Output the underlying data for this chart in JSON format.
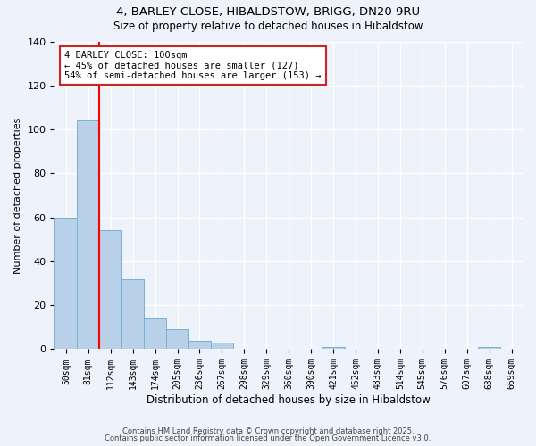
{
  "title": "4, BARLEY CLOSE, HIBALDSTOW, BRIGG, DN20 9RU",
  "subtitle": "Size of property relative to detached houses in Hibaldstow",
  "xlabel": "Distribution of detached houses by size in Hibaldstow",
  "ylabel": "Number of detached properties",
  "bar_color": "#b8d0e8",
  "bar_edge_color": "#7aafd4",
  "background_color": "#eef2fa",
  "grid_color": "#ffffff",
  "categories": [
    "50sqm",
    "81sqm",
    "112sqm",
    "143sqm",
    "174sqm",
    "205sqm",
    "236sqm",
    "267sqm",
    "298sqm",
    "329sqm",
    "360sqm",
    "390sqm",
    "421sqm",
    "452sqm",
    "483sqm",
    "514sqm",
    "545sqm",
    "576sqm",
    "607sqm",
    "638sqm",
    "669sqm"
  ],
  "values": [
    60,
    104,
    54,
    32,
    14,
    9,
    4,
    3,
    0,
    0,
    0,
    0,
    1,
    0,
    0,
    0,
    0,
    0,
    0,
    1,
    0
  ],
  "red_line_bar_index": 1.5,
  "ylim": [
    0,
    140
  ],
  "yticks": [
    0,
    20,
    40,
    60,
    80,
    100,
    120,
    140
  ],
  "annotation_text_line1": "4 BARLEY CLOSE: 100sqm",
  "annotation_text_line2": "← 45% of detached houses are smaller (127)",
  "annotation_text_line3": "54% of semi-detached houses are larger (153) →",
  "footnote1": "Contains HM Land Registry data © Crown copyright and database right 2025.",
  "footnote2": "Contains public sector information licensed under the Open Government Licence v3.0."
}
